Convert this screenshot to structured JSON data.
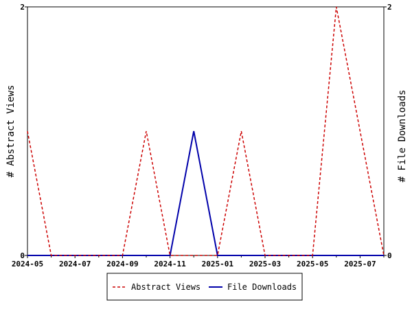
{
  "chart_data": {
    "type": "line",
    "x": [
      "2024-05",
      "2024-06",
      "2024-07",
      "2024-08",
      "2024-09",
      "2024-10",
      "2024-11",
      "2024-12",
      "2025-01",
      "2025-02",
      "2025-03",
      "2025-04",
      "2025-05",
      "2025-06",
      "2025-07",
      "2025-08"
    ],
    "x_tick_labels": [
      "2024-05",
      "2024-07",
      "2024-09",
      "2024-11",
      "2025-01",
      "2025-03",
      "2025-05",
      "2025-07"
    ],
    "series": [
      {
        "name": "Abstract Views",
        "axis": "left",
        "color": "#cc0000",
        "style": "dashed",
        "values": [
          1,
          0,
          0,
          0,
          0,
          1,
          0,
          0,
          0,
          1,
          0,
          0,
          0,
          2,
          1,
          0
        ]
      },
      {
        "name": "File Downloads",
        "axis": "right",
        "color": "#0000aa",
        "style": "solid",
        "values": [
          0,
          0,
          0,
          0,
          0,
          0,
          0,
          1,
          0,
          0,
          0,
          0,
          0,
          0,
          0,
          0
        ]
      }
    ],
    "ylabel_left": "# Abstract Views",
    "ylabel_right": "# File Downloads",
    "ylim_left": [
      0,
      2
    ],
    "ylim_right": [
      0,
      2
    ],
    "y_tick_labels_left": [
      "0",
      "2"
    ],
    "y_tick_labels_right": [
      "0",
      "2"
    ],
    "grid": false,
    "legend_position": "bottom-center"
  }
}
